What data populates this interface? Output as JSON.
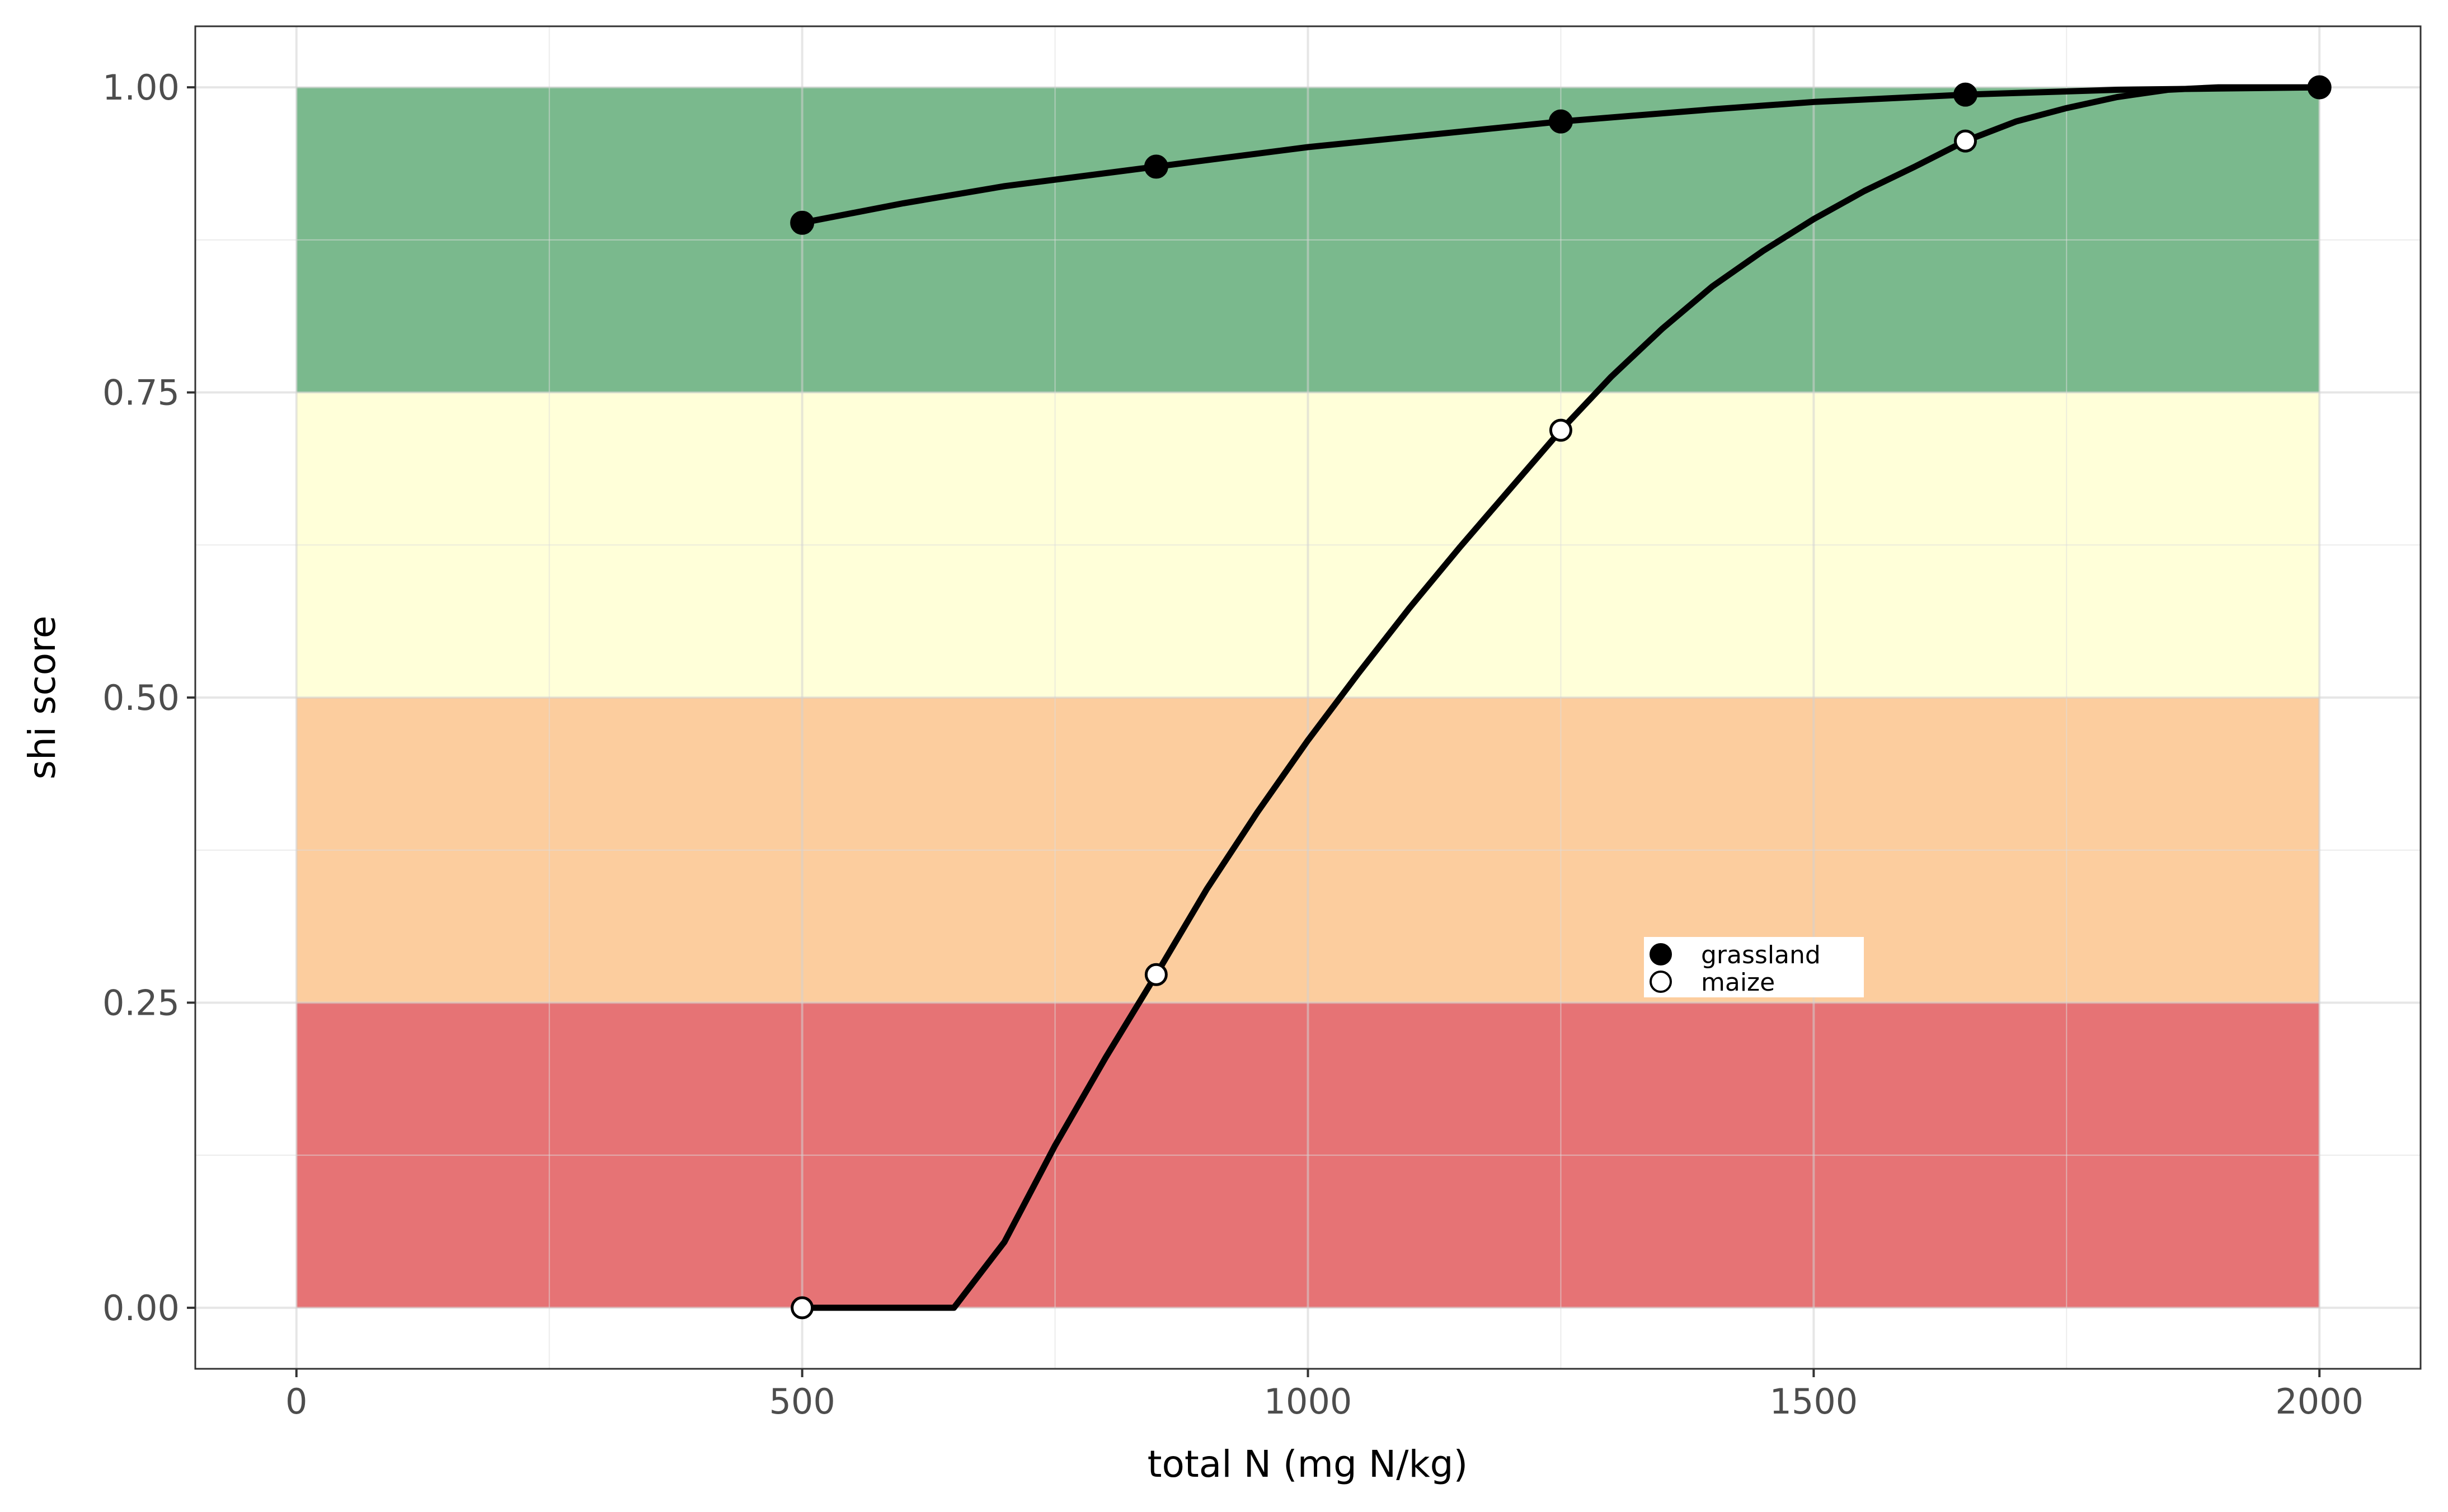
{
  "chart_data": {
    "type": "line",
    "xlabel": "total N (mg N/kg)",
    "ylabel": "shi score",
    "xlim": [
      -100,
      2100
    ],
    "ylim": [
      -0.05,
      1.05
    ],
    "x_ticks": [
      0,
      500,
      1000,
      1500,
      2000
    ],
    "x_tick_labels": [
      "0",
      "500",
      "1000",
      "1500",
      "2000"
    ],
    "y_ticks": [
      0,
      0.25,
      0.5,
      0.75,
      1
    ],
    "y_tick_labels": [
      "0.00",
      "0.25",
      "0.50",
      "0.75",
      "1.00"
    ],
    "grid": true,
    "legend_placement": "inside-center-right",
    "bands": [
      {
        "ymin": 0.0,
        "ymax": 0.25,
        "xmin": 0,
        "xmax": 2000,
        "color": "#e67375"
      },
      {
        "ymin": 0.25,
        "ymax": 0.5,
        "xmin": 0,
        "xmax": 2000,
        "color": "#fccd9e"
      },
      {
        "ymin": 0.5,
        "ymax": 0.75,
        "xmin": 0,
        "xmax": 2000,
        "color": "#ffffd9"
      },
      {
        "ymin": 0.75,
        "ymax": 1.0,
        "xmin": 0,
        "xmax": 2000,
        "color": "#7ab98d"
      }
    ],
    "series": [
      {
        "name": "grassland",
        "marker": "filled-circle",
        "curve_x": [
          500,
          600,
          700,
          850,
          1000,
          1250,
          1400,
          1500,
          1650,
          1800,
          1900,
          2000
        ],
        "curve_y": [
          0.889,
          0.905,
          0.919,
          0.935,
          0.951,
          0.972,
          0.982,
          0.988,
          0.994,
          0.998,
          0.999,
          1.0
        ],
        "points": [
          [
            500,
            0.889
          ],
          [
            850,
            0.935
          ],
          [
            1250,
            0.972
          ],
          [
            1650,
            0.994
          ],
          [
            2000,
            1.0
          ]
        ]
      },
      {
        "name": "maize",
        "marker": "open-circle",
        "curve_x": [
          500,
          650,
          700,
          750,
          800,
          850,
          900,
          950,
          1000,
          1050,
          1100,
          1150,
          1200,
          1250,
          1300,
          1350,
          1400,
          1450,
          1500,
          1550,
          1600,
          1650,
          1700,
          1750,
          1800,
          1850,
          1900,
          2000
        ],
        "curve_y": [
          0.0,
          0.0,
          0.054,
          0.133,
          0.205,
          0.273,
          0.343,
          0.406,
          0.465,
          0.52,
          0.573,
          0.623,
          0.671,
          0.719,
          0.763,
          0.802,
          0.837,
          0.866,
          0.892,
          0.915,
          0.935,
          0.956,
          0.972,
          0.983,
          0.992,
          0.998,
          1.0,
          1.0
        ],
        "points": [
          [
            500,
            0.0
          ],
          [
            850,
            0.273
          ],
          [
            1250,
            0.719
          ],
          [
            1650,
            0.956
          ]
        ]
      }
    ]
  }
}
